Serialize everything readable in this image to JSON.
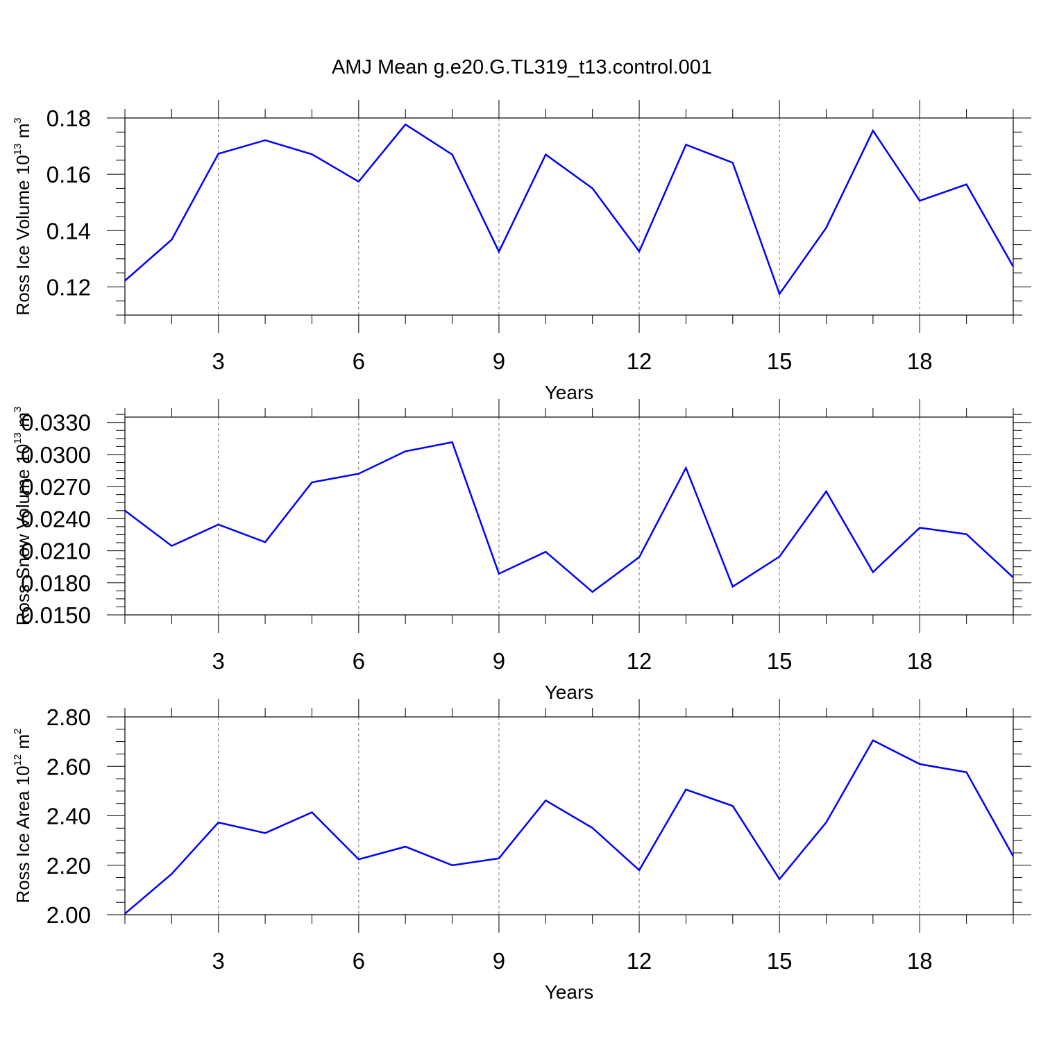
{
  "title": "AMJ Mean g.e20.G.TL319_t13.control.001",
  "chart_data": [
    {
      "type": "line",
      "title": "AMJ Mean g.e20.G.TL319_t13.control.001",
      "xlabel": "Years",
      "ylabel": "Ross Ice Volume 10",
      "ylabel_exp": "13",
      "ylabel_unit": "m",
      "ylabel_unit_exp": "3",
      "xlim": [
        1,
        20
      ],
      "ylim": [
        0.11,
        0.18
      ],
      "xticks": [
        3,
        6,
        9,
        12,
        15,
        18
      ],
      "xtick_labels": [
        "3",
        "6",
        "9",
        "12",
        "15",
        "18"
      ],
      "yticks": [
        0.12,
        0.14,
        0.16,
        0.18
      ],
      "ytick_labels": [
        "0.12",
        "0.14",
        "0.16",
        "0.18"
      ],
      "yminor_step": 0.005,
      "grid": "vertical dashed at major x ticks",
      "line_color": "#0000ff",
      "x": [
        1,
        2,
        3,
        4,
        5,
        6,
        7,
        8,
        9,
        10,
        11,
        12,
        13,
        14,
        15,
        16,
        17,
        18,
        19,
        20
      ],
      "series": [
        {
          "values": [
            0.1222,
            0.1368,
            0.1673,
            0.1721,
            0.1671,
            0.1574,
            0.1777,
            0.167,
            0.1325,
            0.167,
            0.155,
            0.1326,
            0.1705,
            0.1641,
            0.1175,
            0.141,
            0.1755,
            0.1506,
            0.1564,
            0.1272
          ]
        }
      ]
    },
    {
      "type": "line",
      "xlabel": "Years",
      "ylabel": "Ross Snow Volume 10",
      "ylabel_exp": "13",
      "ylabel_unit": "m",
      "ylabel_unit_exp": "3",
      "xlim": [
        1,
        20
      ],
      "ylim": [
        0.015,
        0.0335
      ],
      "xticks": [
        3,
        6,
        9,
        12,
        15,
        18
      ],
      "xtick_labels": [
        "3",
        "6",
        "9",
        "12",
        "15",
        "18"
      ],
      "yticks": [
        0.015,
        0.018,
        0.021,
        0.024,
        0.027,
        0.03,
        0.033
      ],
      "ytick_labels": [
        "0.0150",
        "0.0180",
        "0.0210",
        "0.0240",
        "0.0270",
        "0.0300",
        "0.0330"
      ],
      "yminor_step": 0.00075,
      "grid": "vertical dashed at major x ticks",
      "line_color": "#0000ff",
      "x": [
        1,
        2,
        3,
        4,
        5,
        6,
        7,
        8,
        9,
        10,
        11,
        12,
        13,
        14,
        15,
        16,
        17,
        18,
        19,
        20
      ],
      "series": [
        {
          "values": [
            0.02475,
            0.02145,
            0.02345,
            0.0218,
            0.0274,
            0.0282,
            0.0303,
            0.03115,
            0.01885,
            0.0209,
            0.01715,
            0.0204,
            0.02875,
            0.01765,
            0.02045,
            0.02655,
            0.019,
            0.02315,
            0.02255,
            0.0185
          ]
        }
      ]
    },
    {
      "type": "line",
      "xlabel": "Years",
      "ylabel": "Ross Ice Area 10",
      "ylabel_exp": "12",
      "ylabel_unit": "m",
      "ylabel_unit_exp": "2",
      "xlim": [
        1,
        20
      ],
      "ylim": [
        2.0,
        2.8
      ],
      "xticks": [
        3,
        6,
        9,
        12,
        15,
        18
      ],
      "xtick_labels": [
        "3",
        "6",
        "9",
        "12",
        "15",
        "18"
      ],
      "yticks": [
        2.0,
        2.2,
        2.4,
        2.6,
        2.8
      ],
      "ytick_labels": [
        "2.00",
        "2.20",
        "2.40",
        "2.60",
        "2.80"
      ],
      "yminor_step": 0.05,
      "grid": "vertical dashed at major x ticks",
      "line_color": "#0000ff",
      "x": [
        1,
        2,
        3,
        4,
        5,
        6,
        7,
        8,
        9,
        10,
        11,
        12,
        13,
        14,
        15,
        16,
        17,
        18,
        19,
        20
      ],
      "series": [
        {
          "values": [
            2.004,
            2.165,
            2.373,
            2.33,
            2.414,
            2.224,
            2.275,
            2.2,
            2.228,
            2.462,
            2.351,
            2.18,
            2.506,
            2.44,
            2.144,
            2.373,
            2.705,
            2.609,
            2.576,
            2.236
          ]
        }
      ]
    }
  ]
}
